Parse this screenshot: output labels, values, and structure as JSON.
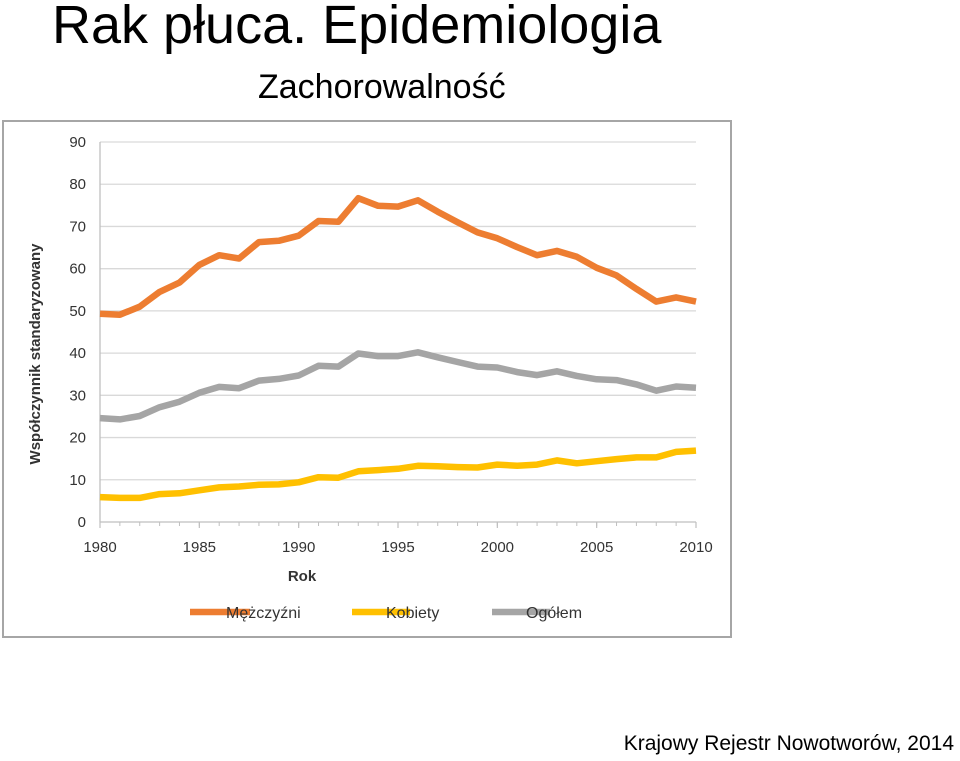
{
  "slide": {
    "title": "Rak płuca. Epidemiologia",
    "subtitle": "Zachorowalność",
    "source": "Krajowy Rejestr Nowotworów, 2014"
  },
  "chart_data": {
    "type": "line",
    "xlabel": "Rok",
    "ylabel": "Współczynnik standaryzowany",
    "xlim": [
      1980,
      2010
    ],
    "ylim": [
      0,
      90
    ],
    "x_ticks": [
      1980,
      1985,
      1990,
      1995,
      2000,
      2005,
      2010
    ],
    "y_ticks": [
      0,
      10,
      20,
      30,
      40,
      50,
      60,
      70,
      80,
      90
    ],
    "grid": "horizontal",
    "legend": "bottom",
    "x": [
      1980,
      1981,
      1982,
      1983,
      1984,
      1985,
      1986,
      1987,
      1988,
      1989,
      1990,
      1991,
      1992,
      1993,
      1994,
      1995,
      1996,
      1997,
      1998,
      1999,
      2000,
      2001,
      2002,
      2003,
      2004,
      2005,
      2006,
      2007,
      2008,
      2009,
      2010
    ],
    "series": [
      {
        "name": "Mężczyźni",
        "color": "#ed7d31",
        "values": [
          49.3,
          49.1,
          51.0,
          54.5,
          56.7,
          60.9,
          63.2,
          62.4,
          66.3,
          66.6,
          67.8,
          71.3,
          71.1,
          76.7,
          74.9,
          74.7,
          76.2,
          73.5,
          71.0,
          68.6,
          67.2,
          65.1,
          63.2,
          64.2,
          62.8,
          60.2,
          58.4,
          55.2,
          52.2,
          53.2,
          52.2
        ]
      },
      {
        "name": "Kobiety",
        "color": "#ffc000",
        "values": [
          5.9,
          5.7,
          5.7,
          6.6,
          6.8,
          7.5,
          8.2,
          8.4,
          8.8,
          8.9,
          9.4,
          10.6,
          10.5,
          12.0,
          12.3,
          12.6,
          13.3,
          13.2,
          13.0,
          12.9,
          13.6,
          13.3,
          13.6,
          14.6,
          13.9,
          14.4,
          14.9,
          15.3,
          15.3,
          16.6,
          16.9
        ]
      },
      {
        "name": "Ogółem",
        "color": "#a5a5a5",
        "values": [
          24.6,
          24.3,
          25.1,
          27.2,
          28.5,
          30.6,
          32.0,
          31.7,
          33.5,
          33.9,
          34.7,
          37.0,
          36.8,
          39.9,
          39.3,
          39.3,
          40.2,
          39.0,
          37.9,
          36.8,
          36.6,
          35.5,
          34.8,
          35.7,
          34.6,
          33.8,
          33.6,
          32.6,
          31.1,
          32.1,
          31.8
        ]
      }
    ]
  }
}
